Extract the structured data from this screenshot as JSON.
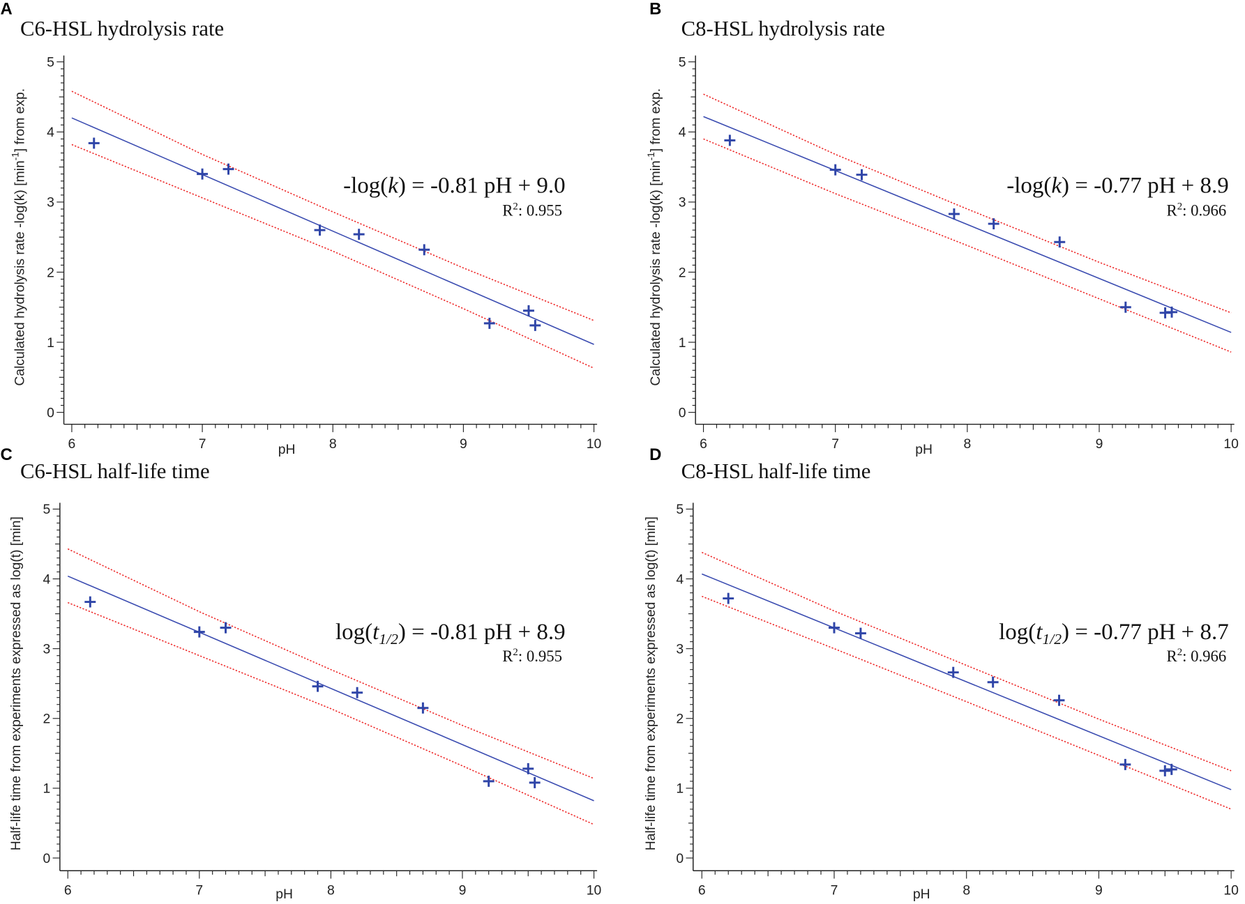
{
  "chart_data": [
    {
      "panel_letter": "A",
      "type": "scatter",
      "title": "C6-HSL hydrolysis rate",
      "xlabel": "pH",
      "ylabel": {
        "pre": "Calculated hydrolysis rate -log(k)  [min",
        "sup": "-1",
        "post": "] from exp."
      },
      "xlim": [
        6,
        10
      ],
      "ylim": [
        0,
        5
      ],
      "xticks": [
        "6",
        "7",
        "8",
        "9",
        "10"
      ],
      "yticks": [
        "0",
        "1",
        "2",
        "3",
        "4",
        "5"
      ],
      "points": [
        [
          6.17,
          3.84
        ],
        [
          7.0,
          3.4
        ],
        [
          7.2,
          3.47
        ],
        [
          7.9,
          2.6
        ],
        [
          8.2,
          2.54
        ],
        [
          8.7,
          2.32
        ],
        [
          9.2,
          1.27
        ],
        [
          9.5,
          1.45
        ],
        [
          9.55,
          1.24
        ]
      ],
      "fit": [
        [
          6,
          4.2
        ],
        [
          10,
          0.97
        ]
      ],
      "band_upper": [
        [
          6,
          4.58
        ],
        [
          7,
          3.68
        ],
        [
          8,
          2.86
        ],
        [
          9,
          2.06
        ],
        [
          10,
          1.31
        ]
      ],
      "band_lower": [
        [
          6,
          3.82
        ],
        [
          7,
          3.06
        ],
        [
          8,
          2.3
        ],
        [
          9,
          1.48
        ],
        [
          10,
          0.63
        ]
      ],
      "equation": {
        "pre": "-log(",
        "var": "k",
        "sub": "",
        "post": ") = -0.81 pH + 9.0"
      },
      "r2": {
        "label": "R",
        "sup": "2",
        "value": ": 0.955"
      }
    },
    {
      "panel_letter": "B",
      "type": "scatter",
      "title": "C8-HSL hydrolysis rate",
      "xlabel": "pH",
      "ylabel": {
        "pre": "Calculated hydrolysis rate -log(k)  [min",
        "sup": "-1",
        "post": "] from exp."
      },
      "xlim": [
        6,
        10
      ],
      "ylim": [
        0,
        5
      ],
      "xticks": [
        "6",
        "7",
        "8",
        "9",
        "10"
      ],
      "yticks": [
        "0",
        "1",
        "2",
        "3",
        "4",
        "5"
      ],
      "points": [
        [
          6.2,
          3.88
        ],
        [
          7.0,
          3.46
        ],
        [
          7.2,
          3.39
        ],
        [
          7.9,
          2.83
        ],
        [
          8.2,
          2.69
        ],
        [
          8.7,
          2.43
        ],
        [
          9.2,
          1.5
        ],
        [
          9.5,
          1.42
        ],
        [
          9.55,
          1.43
        ]
      ],
      "fit": [
        [
          6,
          4.22
        ],
        [
          10,
          1.14
        ]
      ],
      "band_upper": [
        [
          6,
          4.54
        ],
        [
          7,
          3.68
        ],
        [
          8,
          2.9
        ],
        [
          9,
          2.14
        ],
        [
          10,
          1.42
        ]
      ],
      "band_lower": [
        [
          6,
          3.9
        ],
        [
          7,
          3.12
        ],
        [
          8,
          2.38
        ],
        [
          9,
          1.62
        ],
        [
          10,
          0.86
        ]
      ],
      "equation": {
        "pre": "-log(",
        "var": "k",
        "sub": "",
        "post": ") = -0.77 pH + 8.9"
      },
      "r2": {
        "label": "R",
        "sup": "2",
        "value": ": 0.966"
      }
    },
    {
      "panel_letter": "C",
      "type": "scatter",
      "title": "C6-HSL half-life time",
      "xlabel": "pH",
      "ylabel": {
        "pre": "Half-life time from experiments expressed as log(t)  [min]",
        "sup": "",
        "post": ""
      },
      "xlim": [
        6,
        10
      ],
      "ylim": [
        0,
        5
      ],
      "xticks": [
        "6",
        "7",
        "8",
        "9",
        "10"
      ],
      "yticks": [
        "0",
        "1",
        "2",
        "3",
        "4",
        "5"
      ],
      "points": [
        [
          6.17,
          3.67
        ],
        [
          7.0,
          3.24
        ],
        [
          7.2,
          3.3
        ],
        [
          7.9,
          2.46
        ],
        [
          8.2,
          2.37
        ],
        [
          8.7,
          2.15
        ],
        [
          9.2,
          1.1
        ],
        [
          9.5,
          1.28
        ],
        [
          9.55,
          1.08
        ]
      ],
      "fit": [
        [
          6,
          4.04
        ],
        [
          10,
          0.82
        ]
      ],
      "band_upper": [
        [
          6,
          4.43
        ],
        [
          7,
          3.53
        ],
        [
          8,
          2.7
        ],
        [
          9,
          1.9
        ],
        [
          10,
          1.14
        ]
      ],
      "band_lower": [
        [
          6,
          3.66
        ],
        [
          7,
          2.9
        ],
        [
          8,
          2.14
        ],
        [
          9,
          1.32
        ],
        [
          10,
          0.48
        ]
      ],
      "equation": {
        "pre": "log(",
        "var": "t",
        "sub": "1/2",
        "post": ") = -0.81 pH + 8.9"
      },
      "r2": {
        "label": "R",
        "sup": "2",
        "value": ": 0.955"
      }
    },
    {
      "panel_letter": "D",
      "type": "scatter",
      "title": "C8-HSL half-life time",
      "xlabel": "pH",
      "ylabel": {
        "pre": "Half-life time from experiments expressed as log(t)  [min]",
        "sup": "",
        "post": ""
      },
      "xlim": [
        6,
        10
      ],
      "ylim": [
        0,
        5
      ],
      "xticks": [
        "6",
        "7",
        "8",
        "9",
        "10"
      ],
      "yticks": [
        "0",
        "1",
        "2",
        "3",
        "4",
        "5"
      ],
      "points": [
        [
          6.2,
          3.72
        ],
        [
          7.0,
          3.3
        ],
        [
          7.2,
          3.22
        ],
        [
          7.9,
          2.66
        ],
        [
          8.2,
          2.52
        ],
        [
          8.7,
          2.26
        ],
        [
          9.2,
          1.34
        ],
        [
          9.5,
          1.25
        ],
        [
          9.55,
          1.27
        ]
      ],
      "fit": [
        [
          6,
          4.07
        ],
        [
          10,
          0.98
        ]
      ],
      "band_upper": [
        [
          6,
          4.38
        ],
        [
          7,
          3.54
        ],
        [
          8,
          2.76
        ],
        [
          9,
          1.99
        ],
        [
          10,
          1.25
        ]
      ],
      "band_lower": [
        [
          6,
          3.75
        ],
        [
          7,
          3.0
        ],
        [
          8,
          2.24
        ],
        [
          9,
          1.47
        ],
        [
          10,
          0.7
        ]
      ],
      "equation": {
        "pre": "log(",
        "var": "t",
        "sub": "1/2",
        "post": ") = -0.77 pH + 8.7"
      },
      "r2": {
        "label": "R",
        "sup": "2",
        "value": ": 0.966"
      }
    }
  ],
  "colors": {
    "points": "#2f45a8",
    "fit": "#3a4bb0",
    "band": "#ee2a2a",
    "axis": "#222222"
  }
}
